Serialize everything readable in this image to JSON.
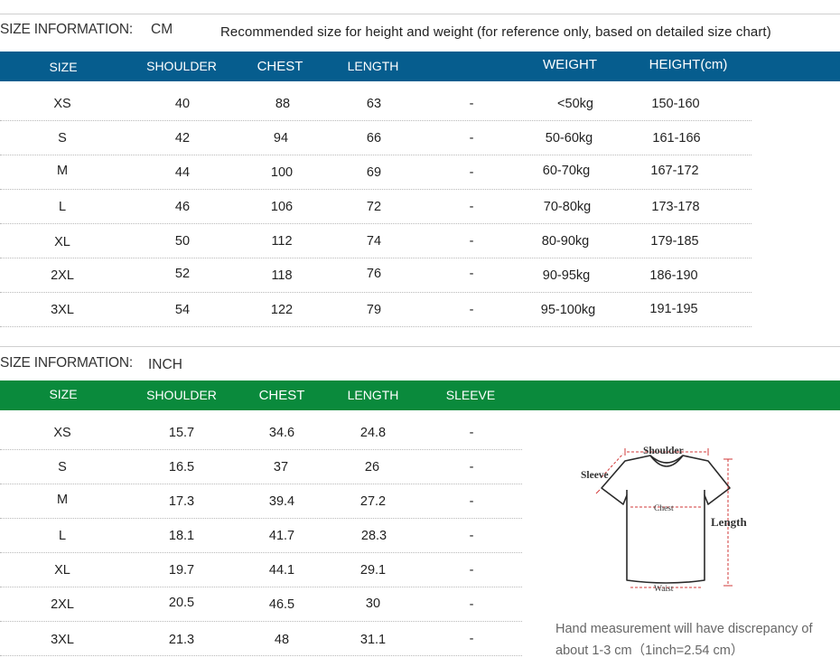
{
  "cm_section": {
    "title": "SIZE INFORMATION:",
    "unit": "CM",
    "note": "Recommended size for height and weight (for reference only, based on detailed size chart)",
    "headers": [
      "SIZE",
      "SHOULDER",
      "CHEST",
      "LENGTH",
      "WEIGHT",
      "HEIGHT(cm)"
    ],
    "rows": [
      {
        "size": "XS",
        "shoulder": "40",
        "chest": "88",
        "length": "63",
        "dash": "-",
        "weight": "<50kg",
        "height": "150-160"
      },
      {
        "size": "S",
        "shoulder": "42",
        "chest": "94",
        "length": "66",
        "dash": "-",
        "weight": "50-60kg",
        "height": "161-166"
      },
      {
        "size": "M",
        "shoulder": "44",
        "chest": "100",
        "length": "69",
        "dash": "-",
        "weight": "60-70kg",
        "height": "167-172"
      },
      {
        "size": "L",
        "shoulder": "46",
        "chest": "106",
        "length": "72",
        "dash": "-",
        "weight": "70-80kg",
        "height": "173-178"
      },
      {
        "size": "XL",
        "shoulder": "50",
        "chest": "112",
        "length": "74",
        "dash": "-",
        "weight": "80-90kg",
        "height": "179-185"
      },
      {
        "size": "2XL",
        "shoulder": "52",
        "chest": "118",
        "length": "76",
        "dash": "-",
        "weight": "90-95kg",
        "height": "186-190"
      },
      {
        "size": "3XL",
        "shoulder": "54",
        "chest": "122",
        "length": "79",
        "dash": "-",
        "weight": "95-100kg",
        "height": "191-195"
      }
    ]
  },
  "inch_section": {
    "title": "SIZE INFORMATION:",
    "unit": "INCH",
    "headers": [
      "SIZE",
      "SHOULDER",
      "CHEST",
      "LENGTH",
      "SLEEVE"
    ],
    "rows": [
      {
        "size": "XS",
        "shoulder": "15.7",
        "chest": "34.6",
        "length": "24.8",
        "sleeve": "-"
      },
      {
        "size": "S",
        "shoulder": "16.5",
        "chest": "37",
        "length": "26",
        "sleeve": "-"
      },
      {
        "size": "M",
        "shoulder": "17.3",
        "chest": "39.4",
        "length": "27.2",
        "sleeve": "-"
      },
      {
        "size": "L",
        "shoulder": "18.1",
        "chest": "41.7",
        "length": "28.3",
        "sleeve": "-"
      },
      {
        "size": "XL",
        "shoulder": "19.7",
        "chest": "44.1",
        "length": "29.1",
        "sleeve": "-"
      },
      {
        "size": "2XL",
        "shoulder": "20.5",
        "chest": "46.5",
        "length": "30",
        "sleeve": "-"
      },
      {
        "size": "3XL",
        "shoulder": "21.3",
        "chest": "48",
        "length": "31.1",
        "sleeve": "-"
      }
    ]
  },
  "diagram": {
    "shoulder": "Shoulder",
    "sleeve": "Sleeve",
    "chest": "Chest",
    "length": "Length",
    "waist": "Waist"
  },
  "measurement_note": "Hand measurement will have discrepancy of about 1-3 cm（1inch=2.54 cm）",
  "colors": {
    "cm_header": "#065d8e",
    "inch_header": "#0a8a3c",
    "measure_marks": "#d23a3a"
  }
}
